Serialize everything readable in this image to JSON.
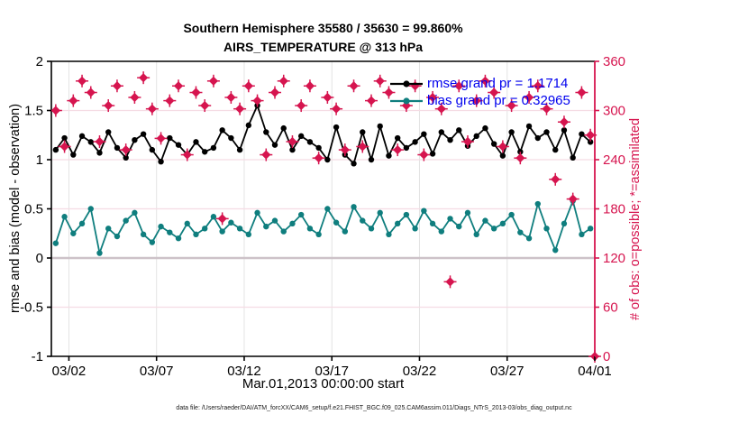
{
  "colors": {
    "obs": "#d6154f",
    "rmse": "#000000",
    "bias": "#0f7e7e",
    "legend_text": "#0000ee",
    "grid_horizontal": "#f5dce4",
    "grid_vertical": "#e3e3e3",
    "zero_line": "#cdc2c8",
    "axis_left_bottom": "#000000",
    "axis_right": "#d6154f",
    "background": "#ffffff"
  },
  "footer": {
    "data_file_note": "data file: /Users/raeder/DAI/ATM_forcXX/CAM6_setup/f.e21.FHIST_BGC.f09_025.CAM6assim.011/Diags_NTrS_2013-03/obs_diag_output.nc"
  },
  "chart_data": {
    "type": "line",
    "title": "Southern Hemisphere 35580 / 35630 = 99.860%",
    "subtitle": "AIRS_TEMPERATURE @ 313 hPa",
    "xlabel": "Mar.01,2013 00:00:00 start",
    "ylabel_left": "rmse and bias (model - observation)",
    "ylabel_right": "# of obs: o=possible; *=assimilated",
    "x_days_range": [
      0,
      31
    ],
    "x_ticks": [
      {
        "day": 1,
        "label": "03/02"
      },
      {
        "day": 6,
        "label": "03/07"
      },
      {
        "day": 11,
        "label": "03/12"
      },
      {
        "day": 16,
        "label": "03/17"
      },
      {
        "day": 21,
        "label": "03/22"
      },
      {
        "day": 26,
        "label": "03/27"
      },
      {
        "day": 31,
        "label": "04/01"
      }
    ],
    "ylim_left": [
      -1,
      2
    ],
    "yticks_left": [
      -1,
      -0.5,
      0,
      0.5,
      1,
      1.5,
      2
    ],
    "ylim_right": [
      0,
      360
    ],
    "yticks_right": [
      0,
      60,
      120,
      180,
      240,
      300,
      360
    ],
    "grid": true,
    "legend_position": "top-right-inside",
    "series": [
      {
        "id": "rmse",
        "legend_label": "rmse grand pr = 1.1714",
        "grand_mean": 1.1714,
        "axis": "left",
        "color": "#000000",
        "marker": "filled-circle",
        "day_start": 0.25,
        "day_step": 0.5,
        "values": [
          1.1,
          1.22,
          1.05,
          1.24,
          1.18,
          1.07,
          1.28,
          1.12,
          1.02,
          1.2,
          1.26,
          1.1,
          0.98,
          1.22,
          1.15,
          1.05,
          1.18,
          1.08,
          1.12,
          1.3,
          1.22,
          1.1,
          1.35,
          1.55,
          1.28,
          1.15,
          1.32,
          1.1,
          1.24,
          1.18,
          1.12,
          1.0,
          1.33,
          1.05,
          0.96,
          1.28,
          1.0,
          1.34,
          1.04,
          1.22,
          1.12,
          1.18,
          1.26,
          1.06,
          1.28,
          1.2,
          1.3,
          1.14,
          1.24,
          1.32,
          1.16,
          1.04,
          1.28,
          1.08,
          1.34,
          1.22,
          1.28,
          1.1,
          1.3,
          1.02,
          1.26,
          1.18
        ]
      },
      {
        "id": "bias",
        "legend_label": "bias grand pr = 0.32965",
        "grand_mean": 0.32965,
        "axis": "left",
        "color": "#0f7e7e",
        "marker": "filled-circle",
        "day_start": 0.25,
        "day_step": 0.5,
        "values": [
          0.15,
          0.42,
          0.25,
          0.35,
          0.5,
          0.05,
          0.3,
          0.22,
          0.38,
          0.46,
          0.24,
          0.16,
          0.32,
          0.26,
          0.2,
          0.35,
          0.24,
          0.3,
          0.42,
          0.27,
          0.36,
          0.3,
          0.24,
          0.46,
          0.32,
          0.38,
          0.27,
          0.35,
          0.44,
          0.3,
          0.24,
          0.5,
          0.36,
          0.27,
          0.52,
          0.38,
          0.3,
          0.46,
          0.24,
          0.35,
          0.44,
          0.3,
          0.48,
          0.35,
          0.27,
          0.4,
          0.32,
          0.46,
          0.24,
          0.38,
          0.3,
          0.35,
          0.44,
          0.26,
          0.2,
          0.55,
          0.3,
          0.08,
          0.35,
          0.58,
          0.24,
          0.3
        ]
      },
      {
        "id": "obs_counts",
        "legend_label": null,
        "axis": "right",
        "color": "#d6154f",
        "marker": "o-possible overlapped by *-assimilated",
        "day_start": 0.25,
        "day_step": 0.5,
        "values": [
          300,
          256,
          312,
          336,
          322,
          262,
          306,
          330,
          252,
          316,
          340,
          302,
          266,
          312,
          330,
          246,
          322,
          306,
          336,
          168,
          316,
          302,
          330,
          312,
          246,
          322,
          336,
          262,
          306,
          330,
          242,
          316,
          302,
          252,
          330,
          256,
          312,
          336,
          322,
          252,
          306,
          330,
          246,
          316,
          302,
          91,
          330,
          262,
          312,
          336,
          322,
          256,
          306,
          242,
          316,
          330,
          302,
          216,
          286,
          192,
          322,
          270
        ],
        "extra_points": [
          {
            "day": 31,
            "value": 0
          }
        ]
      }
    ]
  }
}
